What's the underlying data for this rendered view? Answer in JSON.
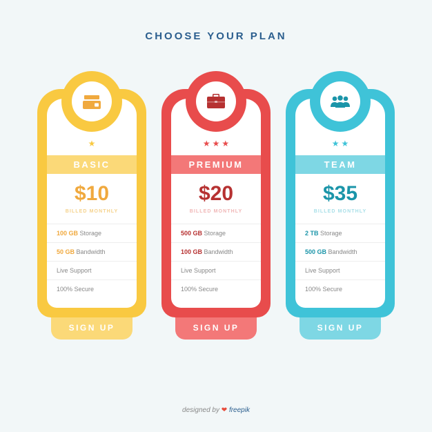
{
  "title": "CHOOSE YOUR PLAN",
  "colors": {
    "background": "#f2f7f8",
    "title": "#2b5e8e"
  },
  "plans": [
    {
      "name": "BASIC",
      "price": "$10",
      "billed": "BILLED MONTHLY",
      "stars": 1,
      "icon": "wallet",
      "accent_main": "#f9c941",
      "accent_light": "#fbd978",
      "accent_deep": "#f0a93e",
      "text_color": "#f0a93e",
      "billed_color": "#f5d28c",
      "features": [
        {
          "bold": "100 GB",
          "rest": " Storage"
        },
        {
          "bold": "50 GB",
          "rest": " Bandwidth"
        },
        {
          "bold": "",
          "rest": "Live Support"
        },
        {
          "bold": "",
          "rest": "100% Secure"
        }
      ],
      "button": "SIGN UP"
    },
    {
      "name": "PREMIUM",
      "price": "$20",
      "billed": "BILLED MONTHLY",
      "stars": 3,
      "icon": "briefcase",
      "accent_main": "#e84c4c",
      "accent_light": "#f37878",
      "accent_deep": "#b63131",
      "text_color": "#b63131",
      "billed_color": "#f0b6b6",
      "features": [
        {
          "bold": "500 GB",
          "rest": " Storage"
        },
        {
          "bold": "100 GB",
          "rest": " Bandwidth"
        },
        {
          "bold": "",
          "rest": "Live Support"
        },
        {
          "bold": "",
          "rest": "100% Secure"
        }
      ],
      "button": "SIGN UP"
    },
    {
      "name": "TEAM",
      "price": "$35",
      "billed": "BILLED MONTHLY",
      "stars": 2,
      "icon": "people",
      "accent_main": "#3fc3d8",
      "accent_light": "#7ed7e4",
      "accent_deep": "#1b95a9",
      "text_color": "#1b95a9",
      "billed_color": "#a8dfe8",
      "features": [
        {
          "bold": "2 TB",
          "rest": " Storage"
        },
        {
          "bold": "500 GB",
          "rest": " Bandwidth"
        },
        {
          "bold": "",
          "rest": "Live Support"
        },
        {
          "bold": "",
          "rest": "100% Secure"
        }
      ],
      "button": "SIGN UP"
    }
  ],
  "attribution": {
    "prefix": "designed by ",
    "heart": "❤",
    "brand": " freepik"
  }
}
